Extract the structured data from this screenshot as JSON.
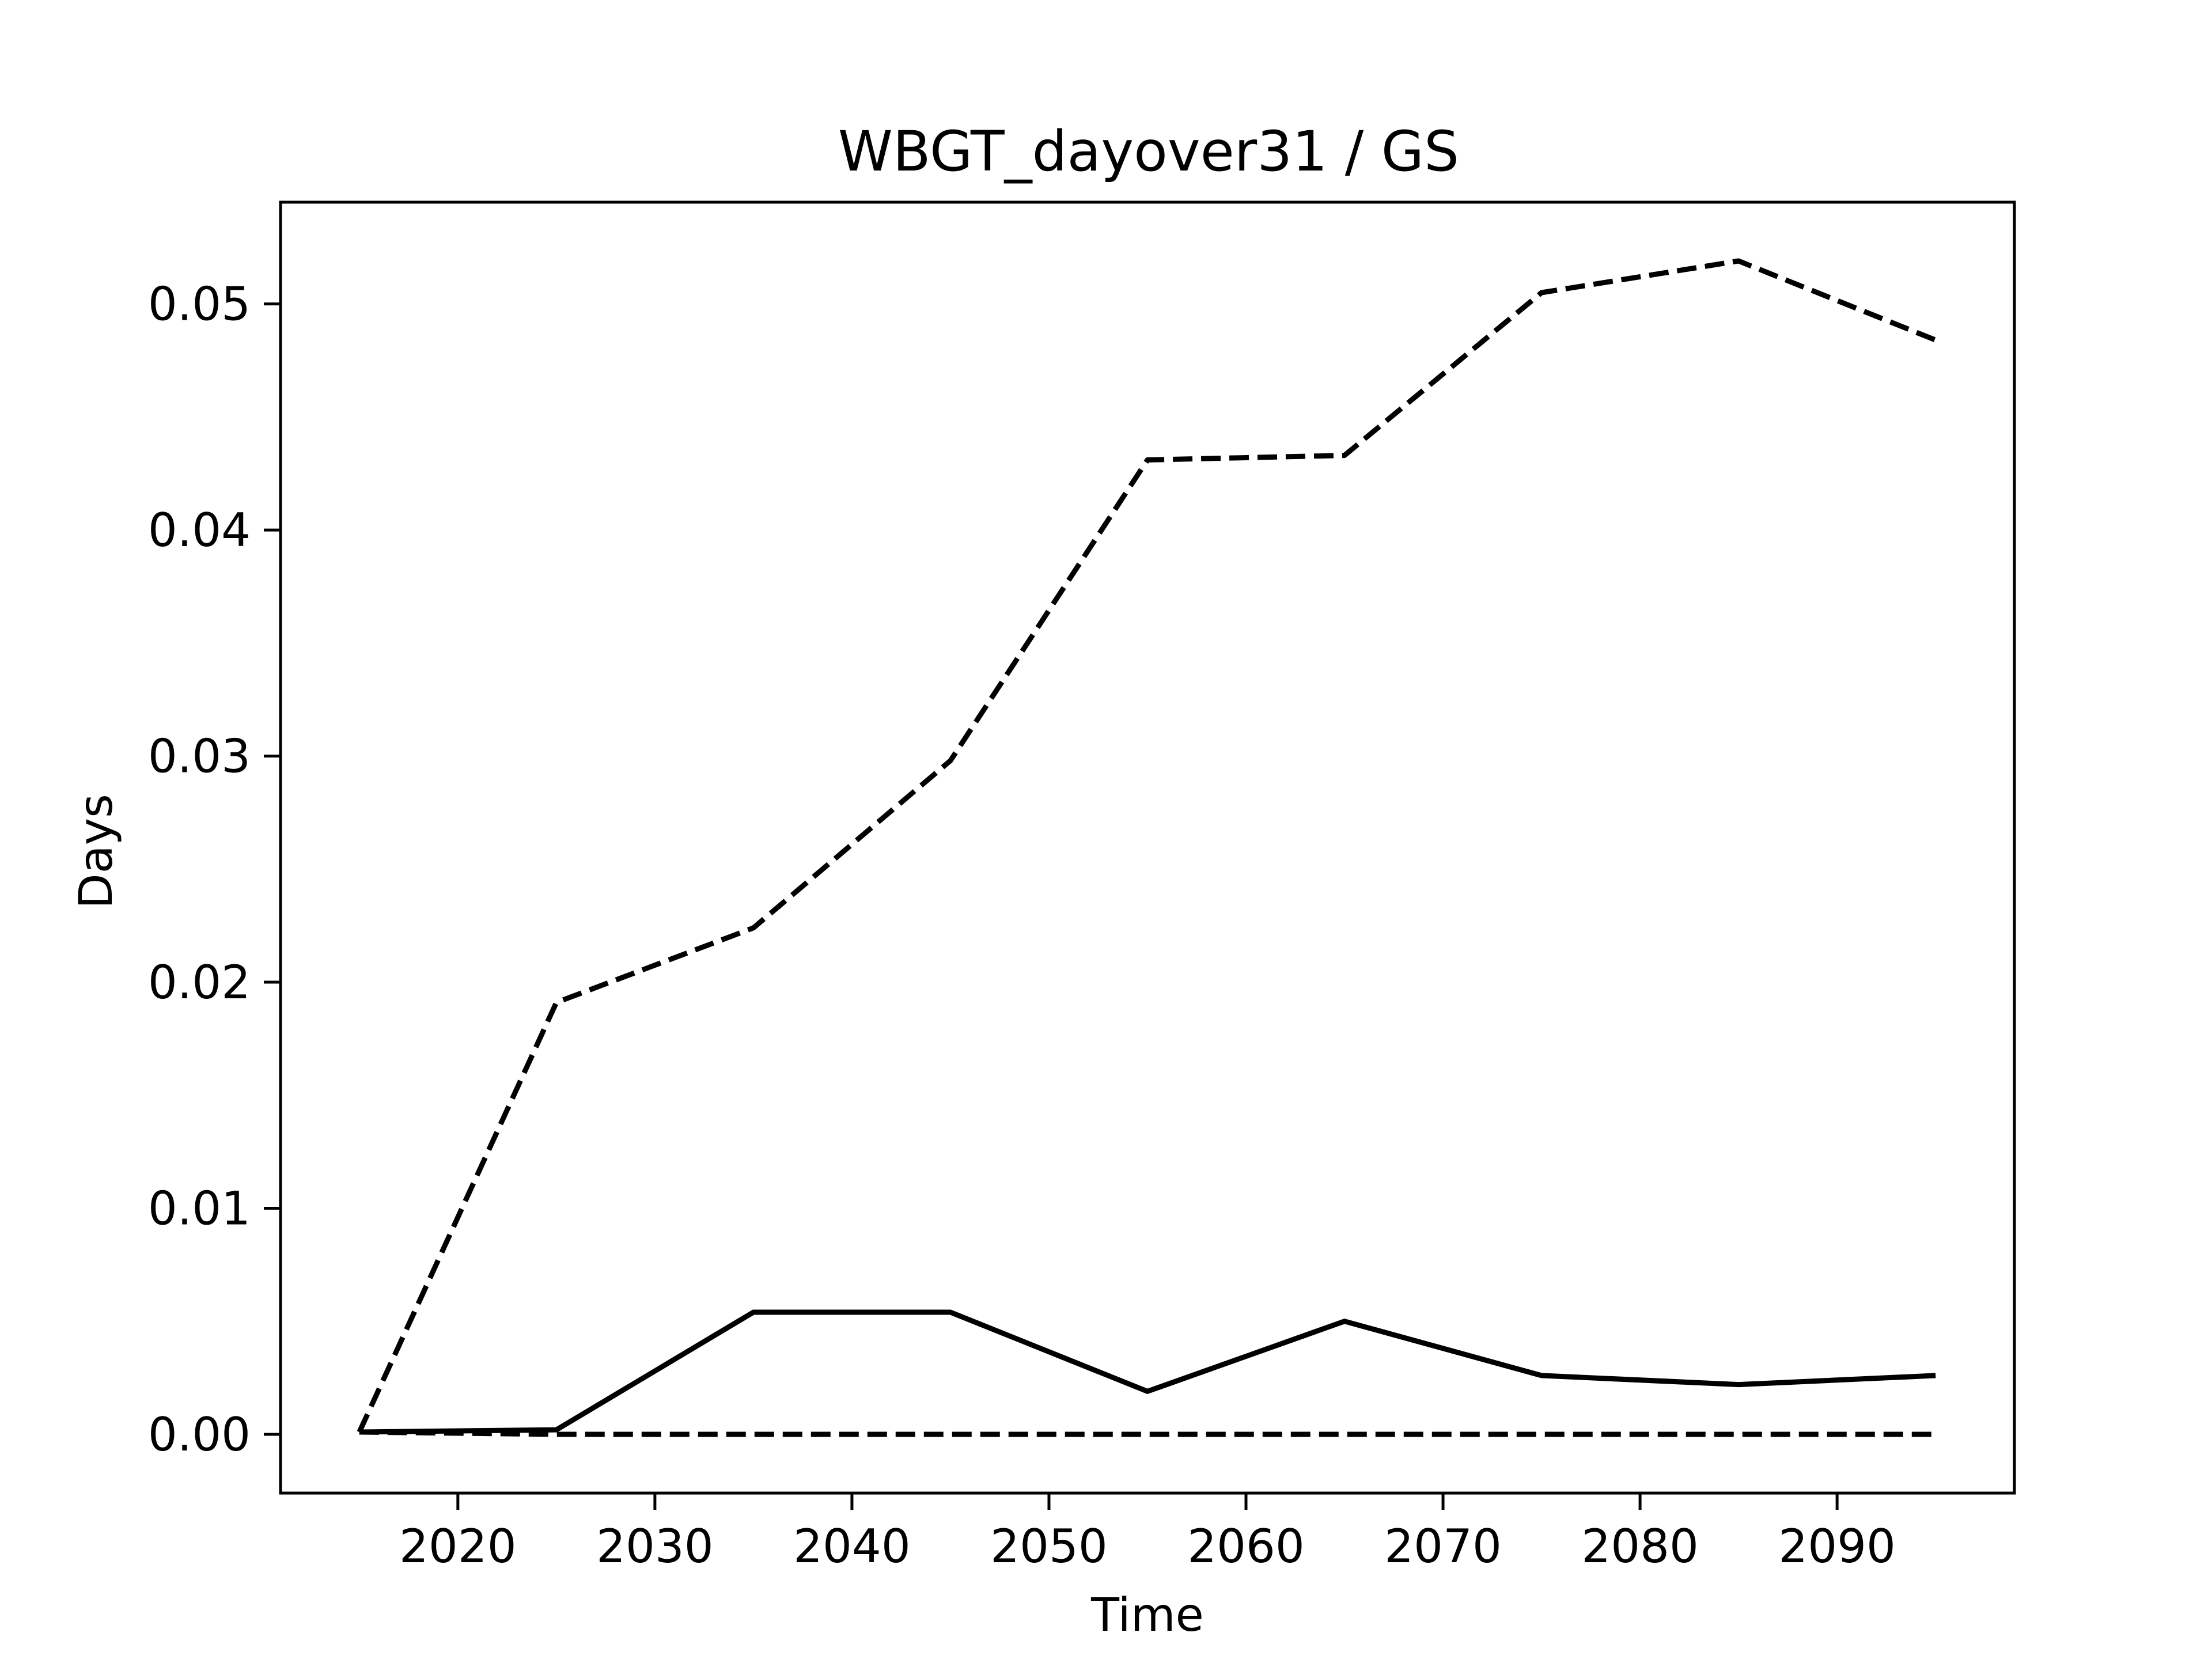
{
  "chart_data": {
    "type": "line",
    "title": "WBGT_dayover31 / GS",
    "xlabel": "Time",
    "ylabel": "Days",
    "xlim": [
      2011,
      2099
    ],
    "ylim": [
      -0.0026,
      0.0545
    ],
    "xticks": [
      2020,
      2030,
      2040,
      2050,
      2060,
      2070,
      2080,
      2090
    ],
    "yticks": [
      0.0,
      0.01,
      0.02,
      0.03,
      0.04,
      0.05
    ],
    "ytick_labels": [
      "0.00",
      "0.01",
      "0.02",
      "0.03",
      "0.04",
      "0.05"
    ],
    "grid": false,
    "legend": "none",
    "x": [
      2015,
      2025,
      2035,
      2045,
      2055,
      2065,
      2075,
      2085,
      2095
    ],
    "series": [
      {
        "style": "solid",
        "color": "#000000",
        "values": [
          0.0001,
          0.0002,
          0.0054,
          0.0054,
          0.0019,
          0.005,
          0.0026,
          0.0022,
          0.0026
        ]
      },
      {
        "style": "dashed",
        "color": "#000000",
        "values": [
          0.0001,
          0.0191,
          0.0224,
          0.0298,
          0.0431,
          0.0433,
          0.0505,
          0.0519,
          0.0484
        ]
      },
      {
        "style": "dashed",
        "color": "#000000",
        "values": [
          0.0001,
          0.0,
          0.0,
          0.0,
          0.0,
          0.0,
          0.0,
          0.0,
          0.0
        ]
      }
    ]
  }
}
